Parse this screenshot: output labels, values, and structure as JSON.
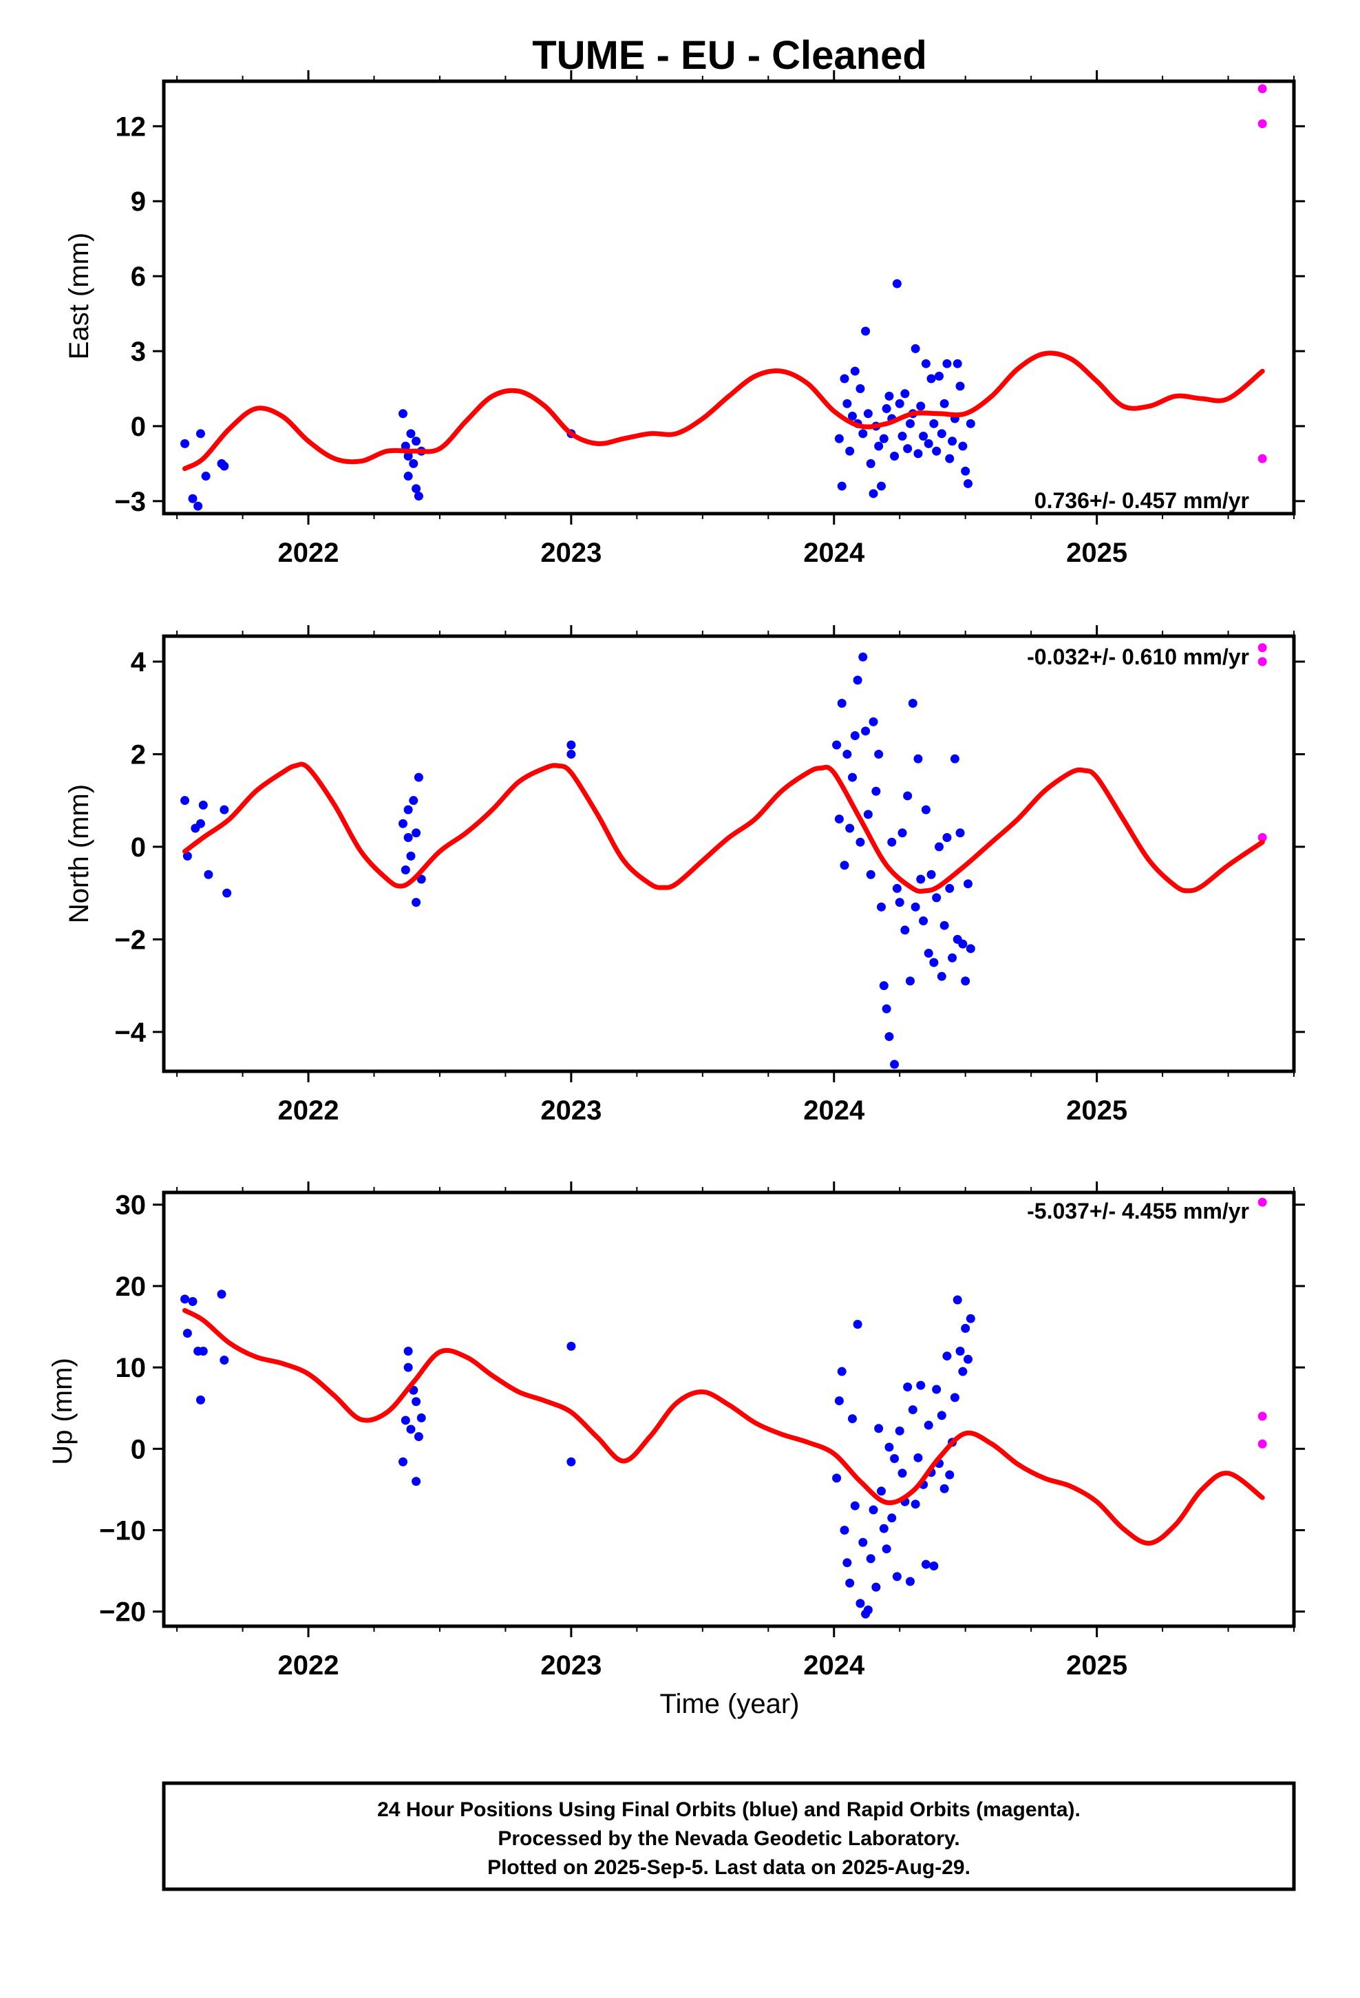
{
  "title": "TUME  - EU - Cleaned",
  "colors": {
    "final": "#0000ff",
    "rapid": "#ff00ff",
    "model": "#ff0000",
    "frame": "#000000"
  },
  "x_axis": {
    "label": "Time (year)",
    "range": [
      2021.45,
      2025.75
    ],
    "ticks": [
      2022,
      2023,
      2024,
      2025
    ],
    "tick_labels": [
      "2022",
      "2023",
      "2024",
      "2025"
    ]
  },
  "footer": {
    "lines": [
      "24 Hour Positions Using Final Orbits (blue) and Rapid Orbits (magenta).",
      "Processed by the Nevada Geodetic Laboratory.",
      "Plotted on 2025-Sep-5. Last data on 2025-Aug-29."
    ]
  },
  "chart_data": [
    {
      "type": "scatter",
      "ylabel": "East (mm)",
      "ylim": [
        -3.5,
        13.8
      ],
      "yticks": [
        -3,
        0,
        3,
        6,
        9,
        12
      ],
      "ytick_labels": [
        "−3",
        "0",
        "3",
        "6",
        "9",
        "12"
      ],
      "rate_label": "0.736+/- 0.457 mm/yr",
      "rate_position": "bottom-right",
      "series": [
        {
          "name": "Final Orbits",
          "color": "#0000ff",
          "x": [
            2021.53,
            2021.56,
            2021.58,
            2021.59,
            2021.61,
            2021.67,
            2021.68,
            2022.36,
            2022.37,
            2022.38,
            2022.38,
            2022.39,
            2022.4,
            2022.41,
            2022.41,
            2022.42,
            2022.43,
            2023.0,
            2024.02,
            2024.03,
            2024.04,
            2024.05,
            2024.06,
            2024.07,
            2024.08,
            2024.09,
            2024.1,
            2024.11,
            2024.12,
            2024.13,
            2024.14,
            2024.15,
            2024.16,
            2024.17,
            2024.18,
            2024.19,
            2024.2,
            2024.21,
            2024.22,
            2024.23,
            2024.24,
            2024.25,
            2024.26,
            2024.27,
            2024.28,
            2024.29,
            2024.3,
            2024.31,
            2024.32,
            2024.33,
            2024.34,
            2024.35,
            2024.36,
            2024.37,
            2024.38,
            2024.39,
            2024.4,
            2024.41,
            2024.42,
            2024.43,
            2024.44,
            2024.45,
            2024.46,
            2024.47,
            2024.48,
            2024.49,
            2024.5,
            2024.51,
            2024.52
          ],
          "y": [
            -0.7,
            -2.9,
            -3.2,
            -0.3,
            -2.0,
            -1.5,
            -1.6,
            0.5,
            -0.8,
            -1.2,
            -2.0,
            -0.3,
            -1.5,
            -2.5,
            -0.6,
            -2.8,
            -1.0,
            -0.3,
            -0.5,
            -2.4,
            1.9,
            0.9,
            -1.0,
            0.4,
            2.2,
            0.1,
            1.5,
            -0.3,
            3.8,
            0.5,
            -1.5,
            -2.7,
            0.0,
            -0.8,
            -2.4,
            -0.5,
            0.7,
            1.2,
            0.3,
            -1.2,
            5.7,
            0.9,
            -0.4,
            1.3,
            -0.9,
            0.1,
            0.5,
            3.1,
            -1.1,
            0.8,
            -0.4,
            2.5,
            -0.7,
            1.9,
            0.1,
            -1.0,
            2.0,
            -0.3,
            0.9,
            2.5,
            -1.3,
            -0.6,
            0.3,
            2.5,
            1.6,
            -0.8,
            -1.8,
            -2.3,
            0.1
          ]
        },
        {
          "name": "Rapid Orbits",
          "color": "#ff00ff",
          "x": [
            2025.63,
            2025.63,
            2025.63
          ],
          "y": [
            13.5,
            12.1,
            -1.3
          ]
        }
      ],
      "model": {
        "color": "#ff0000",
        "x": [
          2021.53,
          2021.6,
          2021.7,
          2021.8,
          2021.9,
          2022.0,
          2022.1,
          2022.2,
          2022.3,
          2022.4,
          2022.5,
          2022.6,
          2022.7,
          2022.8,
          2022.9,
          2023.0,
          2023.1,
          2023.2,
          2023.3,
          2023.4,
          2023.5,
          2023.6,
          2023.7,
          2023.8,
          2023.9,
          2024.0,
          2024.1,
          2024.2,
          2024.3,
          2024.4,
          2024.5,
          2024.6,
          2024.7,
          2024.8,
          2024.9,
          2025.0,
          2025.1,
          2025.2,
          2025.3,
          2025.4,
          2025.5,
          2025.63
        ],
        "y": [
          -1.7,
          -1.3,
          -0.1,
          0.7,
          0.4,
          -0.6,
          -1.3,
          -1.4,
          -1.0,
          -1.0,
          -0.9,
          0.2,
          1.2,
          1.4,
          0.8,
          -0.3,
          -0.7,
          -0.5,
          -0.3,
          -0.3,
          0.3,
          1.2,
          2.0,
          2.2,
          1.7,
          0.6,
          0.0,
          0.1,
          0.5,
          0.5,
          0.5,
          1.2,
          2.3,
          2.9,
          2.7,
          1.8,
          0.8,
          0.8,
          1.2,
          1.1,
          1.1,
          2.2
        ]
      }
    },
    {
      "type": "scatter",
      "ylabel": "North (mm)",
      "ylim": [
        -4.85,
        4.55
      ],
      "yticks": [
        -4,
        -2,
        0,
        2,
        4
      ],
      "ytick_labels": [
        "−4",
        "−2",
        "0",
        "2",
        "4"
      ],
      "rate_label": "-0.032+/- 0.610 mm/yr",
      "rate_position": "top-right",
      "series": [
        {
          "name": "Final Orbits",
          "color": "#0000ff",
          "x": [
            2021.53,
            2021.54,
            2021.57,
            2021.59,
            2021.6,
            2021.62,
            2021.68,
            2021.69,
            2022.36,
            2022.37,
            2022.38,
            2022.38,
            2022.39,
            2022.4,
            2022.41,
            2022.41,
            2022.42,
            2022.43,
            2023.0,
            2023.0,
            2024.01,
            2024.02,
            2024.03,
            2024.04,
            2024.05,
            2024.06,
            2024.07,
            2024.08,
            2024.09,
            2024.1,
            2024.11,
            2024.12,
            2024.13,
            2024.14,
            2024.15,
            2024.16,
            2024.17,
            2024.18,
            2024.19,
            2024.2,
            2024.21,
            2024.22,
            2024.23,
            2024.24,
            2024.25,
            2024.26,
            2024.27,
            2024.28,
            2024.29,
            2024.3,
            2024.31,
            2024.32,
            2024.33,
            2024.34,
            2024.35,
            2024.36,
            2024.37,
            2024.38,
            2024.39,
            2024.4,
            2024.41,
            2024.42,
            2024.43,
            2024.44,
            2024.45,
            2024.46,
            2024.47,
            2024.48,
            2024.49,
            2024.5,
            2024.51,
            2024.52
          ],
          "y": [
            1.0,
            -0.2,
            0.4,
            0.5,
            0.9,
            -0.6,
            0.8,
            -1.0,
            0.5,
            -0.5,
            0.2,
            0.8,
            -0.2,
            1.0,
            -1.2,
            0.3,
            1.5,
            -0.7,
            2.2,
            2.0,
            2.2,
            0.6,
            3.1,
            -0.4,
            2.0,
            0.4,
            1.5,
            2.4,
            3.6,
            0.1,
            4.1,
            2.5,
            0.7,
            -0.6,
            2.7,
            1.2,
            2.0,
            -1.3,
            -3.0,
            -3.5,
            -4.1,
            0.1,
            -4.7,
            -0.9,
            -1.2,
            0.3,
            -1.8,
            1.1,
            -2.9,
            3.1,
            -1.3,
            1.9,
            -0.7,
            -1.6,
            0.8,
            -2.3,
            -0.6,
            -2.5,
            -1.1,
            0.0,
            -2.8,
            -1.7,
            0.2,
            -0.9,
            -2.4,
            1.9,
            -2.0,
            0.3,
            -2.1,
            -2.9,
            -0.8,
            -2.2
          ]
        },
        {
          "name": "Rapid Orbits",
          "color": "#ff00ff",
          "x": [
            2025.63,
            2025.63,
            2025.63
          ],
          "y": [
            4.3,
            4.0,
            0.2
          ]
        }
      ],
      "model": {
        "color": "#ff0000",
        "x": [
          2021.53,
          2021.6,
          2021.7,
          2021.8,
          2021.9,
          2021.95,
          2022.0,
          2022.1,
          2022.2,
          2022.3,
          2022.35,
          2022.4,
          2022.5,
          2022.6,
          2022.7,
          2022.8,
          2022.9,
          2022.95,
          2023.0,
          2023.1,
          2023.2,
          2023.3,
          2023.35,
          2023.4,
          2023.5,
          2023.6,
          2023.7,
          2023.8,
          2023.9,
          2023.95,
          2024.0,
          2024.1,
          2024.2,
          2024.3,
          2024.35,
          2024.4,
          2024.5,
          2024.6,
          2024.7,
          2024.8,
          2024.9,
          2024.95,
          2025.0,
          2025.1,
          2025.2,
          2025.3,
          2025.35,
          2025.4,
          2025.5,
          2025.63
        ],
        "y": [
          -0.1,
          0.2,
          0.6,
          1.2,
          1.6,
          1.75,
          1.7,
          0.9,
          -0.1,
          -0.7,
          -0.85,
          -0.7,
          -0.1,
          0.3,
          0.8,
          1.4,
          1.7,
          1.75,
          1.6,
          0.7,
          -0.3,
          -0.8,
          -0.88,
          -0.8,
          -0.3,
          0.2,
          0.6,
          1.2,
          1.6,
          1.7,
          1.6,
          0.6,
          -0.4,
          -0.9,
          -0.95,
          -0.85,
          -0.4,
          0.1,
          0.6,
          1.2,
          1.6,
          1.65,
          1.5,
          0.6,
          -0.3,
          -0.85,
          -0.95,
          -0.85,
          -0.4,
          0.1
        ]
      }
    },
    {
      "type": "scatter",
      "ylabel": "Up (mm)",
      "ylim": [
        -21.8,
        31.5
      ],
      "yticks": [
        -20,
        -10,
        0,
        10,
        20,
        30
      ],
      "ytick_labels": [
        "−20",
        "−10",
        "0",
        "10",
        "20",
        "30"
      ],
      "xlabel": "Time (year)",
      "rate_label": "-5.037+/- 4.455 mm/yr",
      "rate_position": "top-right",
      "series": [
        {
          "name": "Final Orbits",
          "color": "#0000ff",
          "x": [
            2021.53,
            2021.54,
            2021.56,
            2021.58,
            2021.59,
            2021.6,
            2021.67,
            2021.68,
            2022.36,
            2022.37,
            2022.38,
            2022.38,
            2022.39,
            2022.4,
            2022.41,
            2022.41,
            2022.42,
            2022.43,
            2023.0,
            2023.0,
            2024.01,
            2024.02,
            2024.03,
            2024.04,
            2024.05,
            2024.06,
            2024.07,
            2024.08,
            2024.09,
            2024.1,
            2024.11,
            2024.12,
            2024.13,
            2024.14,
            2024.15,
            2024.16,
            2024.17,
            2024.18,
            2024.19,
            2024.2,
            2024.21,
            2024.22,
            2024.23,
            2024.24,
            2024.25,
            2024.26,
            2024.27,
            2024.28,
            2024.29,
            2024.3,
            2024.31,
            2024.32,
            2024.33,
            2024.34,
            2024.35,
            2024.36,
            2024.37,
            2024.38,
            2024.39,
            2024.4,
            2024.41,
            2024.42,
            2024.43,
            2024.44,
            2024.45,
            2024.46,
            2024.47,
            2024.48,
            2024.49,
            2024.5,
            2024.51,
            2024.52
          ],
          "y": [
            18.4,
            14.2,
            18.1,
            12.0,
            6.0,
            12.0,
            19.0,
            10.9,
            -1.6,
            3.5,
            12.0,
            10.0,
            2.4,
            7.2,
            -4.0,
            5.8,
            1.5,
            3.8,
            12.6,
            -1.6,
            -3.6,
            5.9,
            9.5,
            -10.0,
            -14.0,
            -16.5,
            3.7,
            -7.0,
            15.3,
            -19.0,
            -11.5,
            -20.3,
            -19.8,
            -13.5,
            -7.5,
            -17.0,
            2.5,
            -5.2,
            -9.8,
            -12.3,
            0.2,
            -8.5,
            -1.2,
            -15.7,
            2.2,
            -3.0,
            -6.5,
            7.6,
            -16.3,
            4.8,
            -6.8,
            -1.1,
            7.8,
            -4.4,
            -14.2,
            2.9,
            -2.9,
            -14.4,
            7.3,
            -1.8,
            4.1,
            -4.9,
            11.4,
            -3.2,
            0.8,
            6.3,
            18.3,
            12.0,
            9.5,
            14.8,
            11.0,
            16.0
          ]
        },
        {
          "name": "Rapid Orbits",
          "color": "#ff00ff",
          "x": [
            2025.63,
            2025.63,
            2025.63
          ],
          "y": [
            30.3,
            4.0,
            0.6
          ]
        }
      ],
      "model": {
        "color": "#ff0000",
        "x": [
          2021.53,
          2021.6,
          2021.7,
          2021.8,
          2021.9,
          2022.0,
          2022.1,
          2022.2,
          2022.3,
          2022.4,
          2022.5,
          2022.6,
          2022.7,
          2022.8,
          2022.9,
          2023.0,
          2023.1,
          2023.2,
          2023.3,
          2023.4,
          2023.5,
          2023.6,
          2023.7,
          2023.8,
          2023.9,
          2024.0,
          2024.1,
          2024.2,
          2024.3,
          2024.4,
          2024.5,
          2024.6,
          2024.7,
          2024.8,
          2024.9,
          2025.0,
          2025.1,
          2025.2,
          2025.3,
          2025.4,
          2025.5,
          2025.63
        ],
        "y": [
          17.0,
          15.8,
          13.0,
          11.3,
          10.5,
          9.2,
          6.5,
          3.6,
          4.5,
          8.2,
          11.9,
          11.3,
          9.0,
          7.0,
          5.9,
          4.5,
          1.4,
          -1.5,
          1.5,
          5.6,
          7.0,
          5.4,
          3.2,
          1.8,
          0.8,
          -0.6,
          -4.0,
          -6.6,
          -5.2,
          -1.1,
          1.9,
          0.6,
          -1.9,
          -3.6,
          -4.6,
          -6.5,
          -9.8,
          -11.6,
          -9.3,
          -5.0,
          -3.0,
          -6.0
        ]
      }
    }
  ]
}
